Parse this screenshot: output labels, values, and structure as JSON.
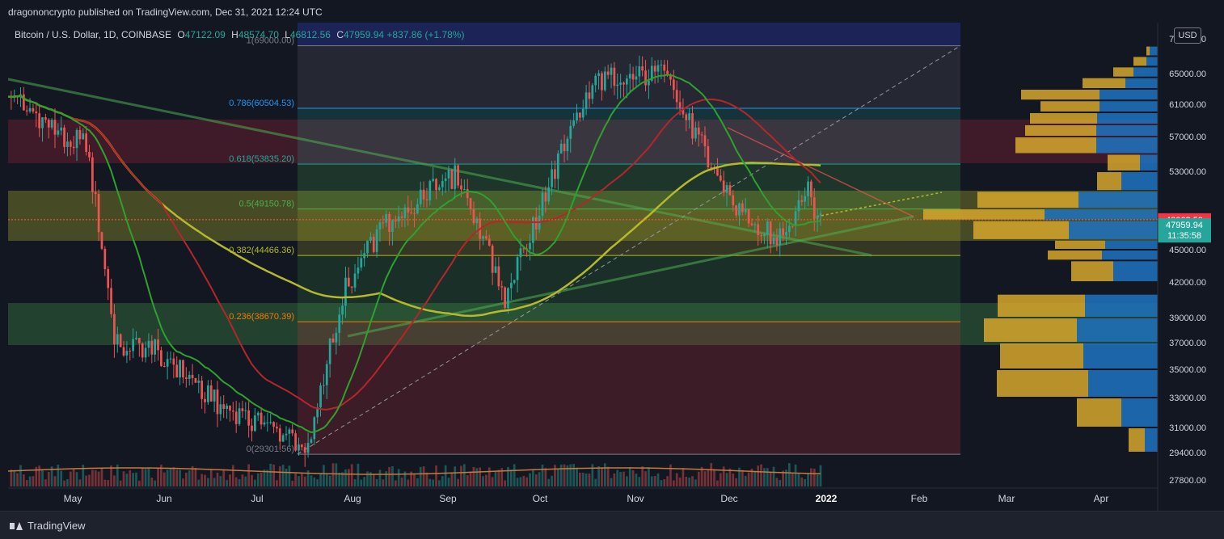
{
  "publisher_line": "dragononcrypto published on TradingView.com, Dec 31, 2021 12:24 UTC",
  "legend": {
    "symbol": "Bitcoin / U.S. Dollar, 1D, COINBASE",
    "open_label": "O",
    "open": "47122.09",
    "high_label": "H",
    "high": "48574.70",
    "low_label": "L",
    "low": "46812.56",
    "close_label": "C",
    "close": "47959.94",
    "change": "+837.86 (+1.78%)"
  },
  "currency_button": "USD",
  "footer": {
    "brand": "TradingView",
    "logo_icon": "tradingview-logo-icon"
  },
  "colors": {
    "background": "#131722",
    "up": "#26a69a",
    "down": "#ef5350",
    "ma_short": "#2ea12e",
    "ma_mid": "#b5262b",
    "ma_long": "#b5b92a",
    "price_line": "#ff5a36",
    "fib_blue": "#2196f3",
    "fib_green": "#4caf50",
    "volume_profile_gold": "#d6a72b",
    "volume_profile_blue": "#1e73c0",
    "last_price_badge": "#26a69a",
    "alert_badge": "#f23645"
  },
  "price_axis": {
    "ticks": [
      "70000.00",
      "65000.00",
      "61000.00",
      "57000.00",
      "53000.00",
      "45000.00",
      "42000.00",
      "39000.00",
      "37000.00",
      "35000.00",
      "33000.00",
      "31000.00",
      "29400.00",
      "27800.00"
    ],
    "alert_label": "48062.50",
    "last_price": "47959.94",
    "countdown": "11:35:58"
  },
  "time_axis": {
    "labels": [
      "May",
      "Jun",
      "Jul",
      "Aug",
      "Sep",
      "Oct",
      "Nov",
      "Dec",
      "2022",
      "Feb",
      "Mar",
      "Apr"
    ]
  },
  "fib_levels": [
    {
      "ratio": "1",
      "price": "69000.00",
      "label": "1(69000.00)",
      "color": "#787b86"
    },
    {
      "ratio": "0.786",
      "price": "60504.53",
      "label": "0.786(60504.53)",
      "color": "#2196f3"
    },
    {
      "ratio": "0.618",
      "price": "53835.20",
      "label": "0.618(53835.20)",
      "color": "#26a69a"
    },
    {
      "ratio": "0.5",
      "price": "49150.78",
      "label": "0.5(49150.78)",
      "color": "#4caf50"
    },
    {
      "ratio": "0.382",
      "price": "44466.36",
      "label": "0.382(44466.36)",
      "color": "#b5b92a"
    },
    {
      "ratio": "0.236",
      "price": "38670.39",
      "label": "0.236(38670.39)",
      "color": "#f57c00"
    },
    {
      "ratio": "0",
      "price": "29301.56",
      "label": "0(29301.56)",
      "color": "#787b86"
    }
  ],
  "chart_data": {
    "type": "candlestick",
    "symbol": "BTCUSD",
    "interval": "1D",
    "exchange": "COINBASE",
    "closes_approx": [
      {
        "date": "2021-04-15",
        "close": 63000
      },
      {
        "date": "2021-04-30",
        "close": 57700
      },
      {
        "date": "2021-05-10",
        "close": 56000
      },
      {
        "date": "2021-05-19",
        "close": 37000
      },
      {
        "date": "2021-06-01",
        "close": 36500
      },
      {
        "date": "2021-06-22",
        "close": 32500
      },
      {
        "date": "2021-07-20",
        "close": 29800
      },
      {
        "date": "2021-08-01",
        "close": 41500
      },
      {
        "date": "2021-08-14",
        "close": 47800
      },
      {
        "date": "2021-09-06",
        "close": 52700
      },
      {
        "date": "2021-09-21",
        "close": 40700
      },
      {
        "date": "2021-10-01",
        "close": 48200
      },
      {
        "date": "2021-10-20",
        "close": 64300
      },
      {
        "date": "2021-11-10",
        "close": 64900
      },
      {
        "date": "2021-11-26",
        "close": 53700
      },
      {
        "date": "2021-12-04",
        "close": 49200
      },
      {
        "date": "2021-12-17",
        "close": 46200
      },
      {
        "date": "2021-12-27",
        "close": 50700
      },
      {
        "date": "2021-12-31",
        "close": 47959.94
      }
    ],
    "volume_profile_zones": [
      {
        "price_low": 29300,
        "price_high": 31000
      },
      {
        "price_low": 31000,
        "price_high": 35000
      },
      {
        "price_low": 35000,
        "price_high": 40000
      },
      {
        "price_low": 40000,
        "price_high": 45000
      },
      {
        "price_low": 45000,
        "price_high": 50000
      },
      {
        "price_low": 50000,
        "price_high": 55000
      },
      {
        "price_low": 55000,
        "price_high": 60000
      },
      {
        "price_low": 60000,
        "price_high": 65000
      },
      {
        "price_low": 65000,
        "price_high": 69000
      }
    ]
  }
}
